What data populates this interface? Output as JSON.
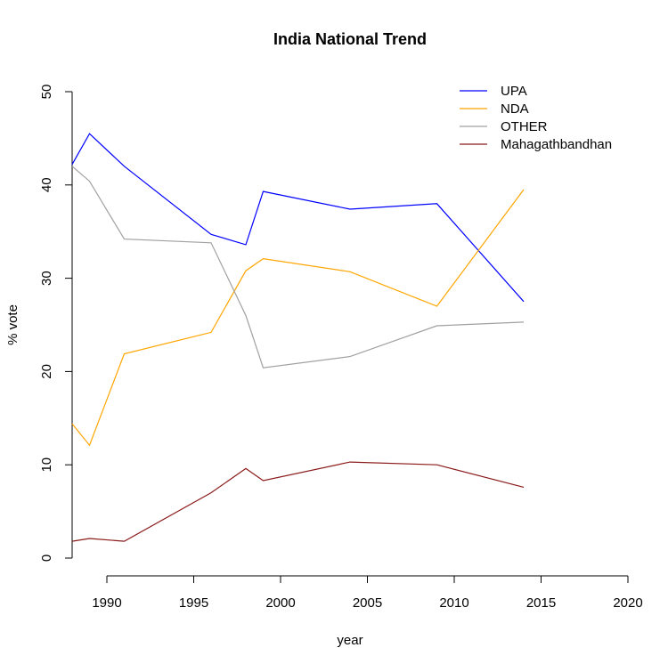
{
  "chart_data": {
    "type": "line",
    "title": "India National Trend",
    "xlabel": "year",
    "ylabel": "% vote",
    "xlim": [
      1988,
      2020
    ],
    "ylim": [
      0,
      50
    ],
    "x_ticks": [
      1990,
      1995,
      2000,
      2005,
      2010,
      2015,
      2020
    ],
    "y_ticks": [
      0,
      10,
      20,
      30,
      40,
      50
    ],
    "grid": false,
    "legend_position": "top-right",
    "x": [
      1988,
      1989,
      1991,
      1996,
      1998,
      1999,
      2004,
      2009,
      2014
    ],
    "series": [
      {
        "name": "UPA",
        "color": "#0000ff",
        "values": [
          42.2,
          45.5,
          42.0,
          34.7,
          33.6,
          39.3,
          37.4,
          38.0,
          27.5
        ]
      },
      {
        "name": "NDA",
        "color": "#ffa500",
        "values": [
          14.4,
          12.1,
          21.9,
          24.2,
          30.8,
          32.1,
          30.7,
          27.0,
          39.5
        ]
      },
      {
        "name": "OTHER",
        "color": "#a0a0a0",
        "values": [
          42.0,
          40.4,
          34.2,
          33.8,
          26.0,
          20.4,
          21.6,
          24.9,
          25.3
        ]
      },
      {
        "name": "Mahagathbandhan",
        "color": "#8b1a1a",
        "values": [
          1.8,
          2.1,
          1.8,
          7.0,
          9.6,
          8.3,
          10.3,
          10.0,
          7.6
        ]
      }
    ]
  }
}
